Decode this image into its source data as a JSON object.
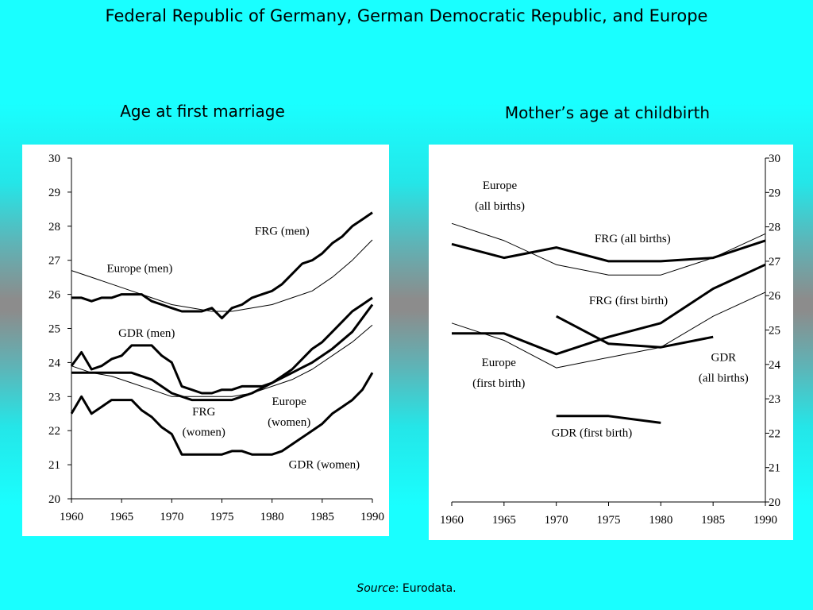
{
  "title": "Federal Republic of Germany, German Democratic Republic, and Europe",
  "source": {
    "label": "Source",
    "text": ": Eurodata."
  },
  "chart_data": [
    {
      "type": "line",
      "title": "Age at first marriage",
      "xlim": [
        1960,
        1990
      ],
      "ylim": [
        20,
        30
      ],
      "xticks": [
        1960,
        1965,
        1970,
        1975,
        1980,
        1985,
        1990
      ],
      "yticks": [
        20,
        21,
        22,
        23,
        24,
        25,
        26,
        27,
        28,
        29,
        30
      ],
      "series": [
        {
          "name": "FRG (men)",
          "style": "thick",
          "x": [
            1960,
            1961,
            1962,
            1963,
            1964,
            1965,
            1966,
            1967,
            1968,
            1969,
            1970,
            1971,
            1972,
            1973,
            1974,
            1975,
            1976,
            1977,
            1978,
            1979,
            1980,
            1981,
            1982,
            1983,
            1984,
            1985,
            1986,
            1987,
            1988,
            1989,
            1990
          ],
          "y": [
            25.9,
            25.9,
            25.8,
            25.9,
            25.9,
            26.0,
            26.0,
            26.0,
            25.8,
            25.7,
            25.6,
            25.5,
            25.5,
            25.5,
            25.6,
            25.3,
            25.6,
            25.7,
            25.9,
            26.0,
            26.1,
            26.3,
            26.6,
            26.9,
            27.0,
            27.2,
            27.5,
            27.7,
            28.0,
            28.2,
            28.4
          ]
        },
        {
          "name": "Europe (men)",
          "style": "thin",
          "x": [
            1960,
            1962,
            1964,
            1966,
            1968,
            1970,
            1972,
            1974,
            1976,
            1978,
            1980,
            1982,
            1984,
            1986,
            1988,
            1990
          ],
          "y": [
            26.7,
            26.5,
            26.3,
            26.1,
            25.9,
            25.7,
            25.6,
            25.5,
            25.5,
            25.6,
            25.7,
            25.9,
            26.1,
            26.5,
            27.0,
            27.6
          ]
        },
        {
          "name": "GDR (men)",
          "style": "thick",
          "x": [
            1960,
            1961,
            1962,
            1963,
            1964,
            1965,
            1966,
            1967,
            1968,
            1969,
            1970,
            1971,
            1972,
            1973,
            1974,
            1975,
            1976,
            1977,
            1978,
            1979,
            1980,
            1981,
            1982,
            1983,
            1984,
            1985,
            1986,
            1987,
            1988,
            1989,
            1990
          ],
          "y": [
            23.9,
            24.3,
            23.8,
            23.9,
            24.1,
            24.2,
            24.5,
            24.5,
            24.5,
            24.2,
            24.0,
            23.3,
            23.2,
            23.1,
            23.1,
            23.2,
            23.2,
            23.3,
            23.3,
            23.3,
            23.4,
            23.6,
            23.8,
            24.1,
            24.4,
            24.6,
            24.9,
            25.2,
            25.5,
            25.7,
            25.9
          ]
        },
        {
          "name": "FRG (women)",
          "style": "thick",
          "x": [
            1960,
            1962,
            1964,
            1966,
            1968,
            1970,
            1972,
            1974,
            1975,
            1976,
            1978,
            1980,
            1982,
            1984,
            1986,
            1988,
            1990
          ],
          "y": [
            23.7,
            23.7,
            23.7,
            23.7,
            23.5,
            23.1,
            22.9,
            22.9,
            22.9,
            22.9,
            23.1,
            23.4,
            23.7,
            24.0,
            24.4,
            24.9,
            25.7
          ]
        },
        {
          "name": "Europe (women)",
          "style": "thin",
          "x": [
            1960,
            1962,
            1964,
            1966,
            1968,
            1970,
            1972,
            1974,
            1976,
            1978,
            1980,
            1982,
            1984,
            1986,
            1988,
            1990
          ],
          "y": [
            23.9,
            23.7,
            23.6,
            23.4,
            23.2,
            23.0,
            23.0,
            23.0,
            23.0,
            23.1,
            23.3,
            23.5,
            23.8,
            24.2,
            24.6,
            25.1
          ]
        },
        {
          "name": "GDR (women)",
          "style": "thick",
          "x": [
            1960,
            1961,
            1962,
            1963,
            1964,
            1965,
            1966,
            1967,
            1968,
            1969,
            1970,
            1971,
            1972,
            1973,
            1974,
            1975,
            1976,
            1977,
            1978,
            1979,
            1980,
            1981,
            1982,
            1983,
            1984,
            1985,
            1986,
            1987,
            1988,
            1989,
            1990
          ],
          "y": [
            22.5,
            23.0,
            22.5,
            22.7,
            22.9,
            22.9,
            22.9,
            22.6,
            22.4,
            22.1,
            21.9,
            21.3,
            21.3,
            21.3,
            21.3,
            21.3,
            21.4,
            21.4,
            21.3,
            21.3,
            21.3,
            21.4,
            21.6,
            21.8,
            22.0,
            22.2,
            22.5,
            22.7,
            22.9,
            23.2,
            23.7
          ]
        }
      ],
      "labels": [
        {
          "text": "FRG (men)",
          "x": 1981.0,
          "y": 27.75
        },
        {
          "text": "Europe (men)",
          "x": 1966.8,
          "y": 26.65
        },
        {
          "text": "GDR (men)",
          "x": 1967.5,
          "y": 24.75
        },
        {
          "text": "FRG",
          "x": 1973.2,
          "y": 22.45
        },
        {
          "text": "(women)",
          "x": 1973.2,
          "y": 21.85
        },
        {
          "text": "Europe",
          "x": 1981.7,
          "y": 22.75
        },
        {
          "text": "(women)",
          "x": 1981.7,
          "y": 22.15
        },
        {
          "text": "GDR (women)",
          "x": 1985.2,
          "y": 20.9
        }
      ]
    },
    {
      "type": "line",
      "title": "Mother’s age at childbirth",
      "xlim": [
        1960,
        1990
      ],
      "ylim": [
        20,
        30
      ],
      "xticks": [
        1960,
        1965,
        1970,
        1975,
        1980,
        1985,
        1990
      ],
      "yticks": [
        20,
        21,
        22,
        23,
        24,
        25,
        26,
        27,
        28,
        29,
        30
      ],
      "series": [
        {
          "name": "Europe (all births)",
          "style": "thin",
          "x": [
            1960,
            1965,
            1970,
            1975,
            1980,
            1985,
            1990
          ],
          "y": [
            28.1,
            27.6,
            26.9,
            26.6,
            26.6,
            27.1,
            27.8
          ]
        },
        {
          "name": "FRG (all births)",
          "style": "thick",
          "x": [
            1960,
            1965,
            1970,
            1975,
            1980,
            1985,
            1990
          ],
          "y": [
            27.5,
            27.1,
            27.4,
            27.0,
            27.0,
            27.1,
            27.6
          ]
        },
        {
          "name": "FRG (first birth)",
          "style": "thick",
          "x": [
            1960,
            1965,
            1970,
            1975,
            1980,
            1985,
            1990
          ],
          "y": [
            24.9,
            24.9,
            24.3,
            24.8,
            25.2,
            26.2,
            26.9
          ]
        },
        {
          "name": "Europe (first birth)",
          "style": "thin",
          "x": [
            1960,
            1965,
            1970,
            1975,
            1980,
            1985,
            1990
          ],
          "y": [
            25.2,
            24.7,
            23.9,
            24.2,
            24.5,
            25.4,
            26.1
          ]
        },
        {
          "name": "GDR (all births)",
          "style": "thick",
          "x": [
            1970,
            1975,
            1980,
            1985
          ],
          "y": [
            25.4,
            24.6,
            24.5,
            24.8
          ]
        },
        {
          "name": "GDR (first birth)",
          "style": "thick",
          "x": [
            1970,
            1975,
            1980
          ],
          "y": [
            22.5,
            22.5,
            22.3
          ]
        }
      ],
      "labels": [
        {
          "text": "Europe",
          "x": 1964.6,
          "y": 29.1
        },
        {
          "text": "(all births)",
          "x": 1964.6,
          "y": 28.5
        },
        {
          "text": "FRG (all births)",
          "x": 1977.3,
          "y": 27.55
        },
        {
          "text": "FRG (first birth)",
          "x": 1976.9,
          "y": 25.75
        },
        {
          "text": "GDR",
          "x": 1986.0,
          "y": 24.1
        },
        {
          "text": "(all births)",
          "x": 1986.0,
          "y": 23.5
        },
        {
          "text": "Europe",
          "x": 1964.5,
          "y": 23.95
        },
        {
          "text": "(first birth)",
          "x": 1964.5,
          "y": 23.35
        },
        {
          "text": "GDR (first birth)",
          "x": 1973.4,
          "y": 21.9
        }
      ]
    }
  ]
}
